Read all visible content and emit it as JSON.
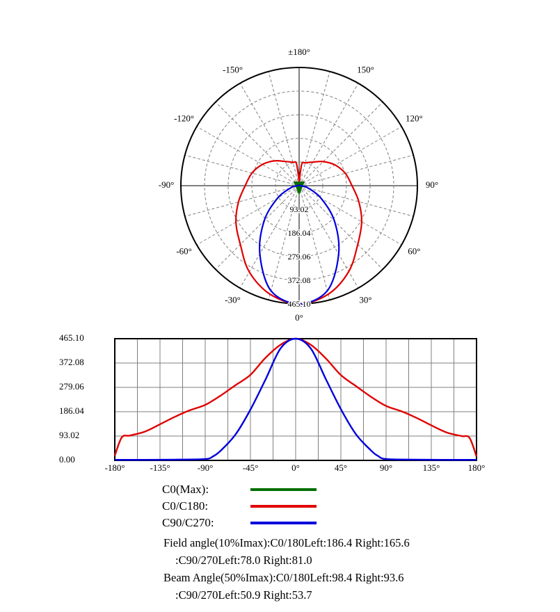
{
  "page": {
    "background": "#ffffff"
  },
  "polar_chart": {
    "grid_color": "#7f7f7f",
    "axis_color": "#000000",
    "angle_labels": [
      {
        "angle": 180,
        "label": "±180°"
      },
      {
        "angle": 150,
        "label": "150°"
      },
      {
        "angle": 120,
        "label": "120°"
      },
      {
        "angle": 90,
        "label": "90°"
      },
      {
        "angle": 60,
        "label": "60°"
      },
      {
        "angle": 30,
        "label": "30°"
      },
      {
        "angle": 0,
        "label": "0°"
      },
      {
        "angle": -30,
        "label": "-30°"
      },
      {
        "angle": -60,
        "label": "-60°"
      },
      {
        "angle": -90,
        "label": "-90°"
      },
      {
        "angle": -120,
        "label": "-120°"
      },
      {
        "angle": -150,
        "label": "-150°"
      }
    ],
    "ring_labels": [
      "93.02",
      "186.04",
      "279.06",
      "372.08",
      "465.10"
    ]
  },
  "cartesian_chart": {
    "grid_color": "#7f7f7f",
    "x_tick_labels": [
      "-180°",
      "-135°",
      "-90°",
      "-45°",
      "0°",
      "45°",
      "90°",
      "135°",
      "180°"
    ],
    "y_tick_labels": [
      "465.10",
      "372.08",
      "279.06",
      "186.04",
      "93.02",
      "0.00"
    ]
  },
  "legend": [
    {
      "label": "C0(Max):",
      "color": "#006e00"
    },
    {
      "label": "C0/C180:",
      "color": "#e00000"
    },
    {
      "label": "C90/C270:",
      "color": "#0000dd"
    }
  ],
  "annotations": {
    "line1": "Field angle(10%Imax):C0/180Left:186.4 Right:165.6",
    "line2": ":C90/270Left:78.0 Right:81.0",
    "line3": "Beam Angle(50%Imax):C0/180Left:98.4 Right:93.6",
    "line4": ":C90/270Left:50.9 Right:53.7"
  },
  "chart_data": [
    {
      "type": "polar",
      "zero_angle_position": "bottom",
      "angle_range_deg": [
        -180,
        180
      ],
      "angle_grid_step_deg": 15,
      "radial_range": [
        0,
        465.1
      ],
      "radial_rings": [
        93.02,
        186.04,
        279.06,
        372.08,
        465.1
      ],
      "max_marker": {
        "name": "C0(Max)",
        "color": "#006e00",
        "angle_deg": 0
      },
      "series": [
        {
          "name": "C0/C180",
          "color": "#e00000",
          "points": [
            [
              -180,
              18
            ],
            [
              -173,
              88
            ],
            [
              -165,
              95
            ],
            [
              -150,
              110
            ],
            [
              -135,
              138
            ],
            [
              -120,
              167
            ],
            [
              -105,
              192
            ],
            [
              -90,
              212
            ],
            [
              -75,
              247
            ],
            [
              -60,
              287
            ],
            [
              -45,
              327
            ],
            [
              -30,
              392
            ],
            [
              -15,
              442
            ],
            [
              0,
              465.1
            ],
            [
              15,
              442
            ],
            [
              30,
              390
            ],
            [
              45,
              326
            ],
            [
              60,
              284
            ],
            [
              75,
              243
            ],
            [
              90,
              208
            ],
            [
              105,
              188
            ],
            [
              120,
              163
            ],
            [
              135,
              134
            ],
            [
              150,
              107
            ],
            [
              165,
              93
            ],
            [
              173,
              86
            ],
            [
              180,
              15
            ]
          ]
        },
        {
          "name": "C90/C270",
          "color": "#0000dd",
          "points": [
            [
              -180,
              2
            ],
            [
              -150,
              2
            ],
            [
              -120,
              3
            ],
            [
              -90,
              5
            ],
            [
              -82,
              16
            ],
            [
              -75,
              36
            ],
            [
              -60,
              98
            ],
            [
              -45,
              194
            ],
            [
              -30,
              309
            ],
            [
              -15,
              428
            ],
            [
              0,
              465.1
            ],
            [
              15,
              428
            ],
            [
              30,
              311
            ],
            [
              45,
              196
            ],
            [
              60,
              100
            ],
            [
              75,
              38
            ],
            [
              82,
              17
            ],
            [
              90,
              5
            ],
            [
              120,
              3
            ],
            [
              150,
              2
            ],
            [
              180,
              2
            ]
          ]
        }
      ]
    },
    {
      "type": "line",
      "xlim": [
        -180,
        180
      ],
      "ylim": [
        0,
        465.1
      ],
      "x_ticks_deg": [
        -180,
        -135,
        -90,
        -45,
        0,
        45,
        90,
        135,
        180
      ],
      "x_grid_step_deg": 22.5,
      "y_ticks": [
        0,
        93.02,
        186.04,
        279.06,
        372.08,
        465.1
      ],
      "grid": true,
      "legend_position": "below",
      "series": [
        {
          "name": "C0/C180",
          "color": "#e00000",
          "points": [
            [
              -180,
              18
            ],
            [
              -173,
              88
            ],
            [
              -165,
              95
            ],
            [
              -150,
              110
            ],
            [
              -135,
              138
            ],
            [
              -120,
              167
            ],
            [
              -105,
              192
            ],
            [
              -90,
              212
            ],
            [
              -75,
              247
            ],
            [
              -60,
              287
            ],
            [
              -45,
              327
            ],
            [
              -30,
              392
            ],
            [
              -15,
              442
            ],
            [
              0,
              465.1
            ],
            [
              15,
              442
            ],
            [
              30,
              390
            ],
            [
              45,
              326
            ],
            [
              60,
              284
            ],
            [
              75,
              243
            ],
            [
              90,
              208
            ],
            [
              105,
              188
            ],
            [
              120,
              163
            ],
            [
              135,
              134
            ],
            [
              150,
              107
            ],
            [
              165,
              93
            ],
            [
              173,
              86
            ],
            [
              180,
              15
            ]
          ]
        },
        {
          "name": "C90/C270",
          "color": "#0000dd",
          "points": [
            [
              -180,
              2
            ],
            [
              -150,
              2
            ],
            [
              -120,
              3
            ],
            [
              -90,
              5
            ],
            [
              -82,
              16
            ],
            [
              -75,
              36
            ],
            [
              -60,
              98
            ],
            [
              -45,
              194
            ],
            [
              -30,
              309
            ],
            [
              -15,
              428
            ],
            [
              0,
              465.1
            ],
            [
              15,
              428
            ],
            [
              30,
              311
            ],
            [
              45,
              196
            ],
            [
              60,
              100
            ],
            [
              75,
              38
            ],
            [
              82,
              17
            ],
            [
              90,
              5
            ],
            [
              120,
              3
            ],
            [
              150,
              2
            ],
            [
              180,
              2
            ]
          ]
        }
      ]
    }
  ]
}
